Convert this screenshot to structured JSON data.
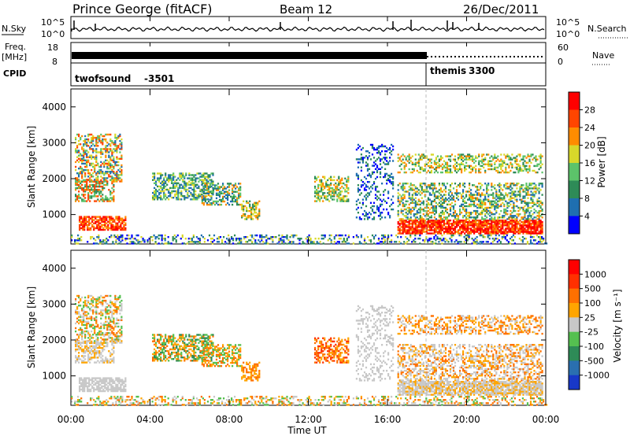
{
  "header": {
    "station": "Prince George (fitACF)",
    "beam": "Beam 12",
    "date": "26/Dec/2011"
  },
  "status_panels": {
    "nsky_label": "N.Sky",
    "nsky_ticks": [
      "10^5",
      "10^0"
    ],
    "nsearch_label": "N.Search",
    "nsearch_ticks": [
      "10^5",
      "10^0"
    ],
    "freq_label": "Freq.",
    "freq_unit": "[MHz]",
    "freq_ticks": [
      "18",
      "8"
    ],
    "nave_label": "Nave",
    "nave_ticks": [
      "60",
      "0"
    ],
    "cpid_label": "CPID",
    "cpid_programs": [
      {
        "name": "twofsound",
        "id": "-3501"
      },
      {
        "name": "themis",
        "id": "3300"
      }
    ]
  },
  "chart_data": [
    {
      "type": "heatmap",
      "name": "power",
      "ylabel": "Slant Range [km]",
      "xlim": [
        "00:00",
        "00:00"
      ],
      "ylim": [
        180,
        4500
      ],
      "y_ticks": [
        1000,
        2000,
        3000,
        4000
      ],
      "colorbar": {
        "label": "Power [dB]",
        "ticks": [
          "28",
          "24",
          "20",
          "16",
          "12",
          "8",
          "4"
        ],
        "colors": [
          "#0000ff",
          "#1f6fb0",
          "#2e8b57",
          "#5cc36a",
          "#d8d82a",
          "#ff8c00",
          "#ff4500",
          "#ff0000"
        ]
      }
    },
    {
      "type": "heatmap",
      "name": "velocity",
      "ylabel": "Slant Range [km]",
      "xlabel": "Time UT",
      "x_ticks": [
        "00:00",
        "04:00",
        "08:00",
        "12:00",
        "16:00",
        "20:00",
        "00:00"
      ],
      "ylim": [
        180,
        4500
      ],
      "y_ticks": [
        1000,
        2000,
        3000,
        4000
      ],
      "colorbar": {
        "label": "Velocity [m s⁻¹]",
        "ticks": [
          "1000",
          "500",
          "100",
          "25",
          "-25",
          "-100",
          "-500",
          "-1000"
        ],
        "colors": [
          "#1838c8",
          "#2a6fb0",
          "#2e8b57",
          "#55c050",
          "#c8c8c8",
          "#ffa500",
          "#ff7000",
          "#ff3000",
          "#ff0000"
        ]
      }
    }
  ]
}
